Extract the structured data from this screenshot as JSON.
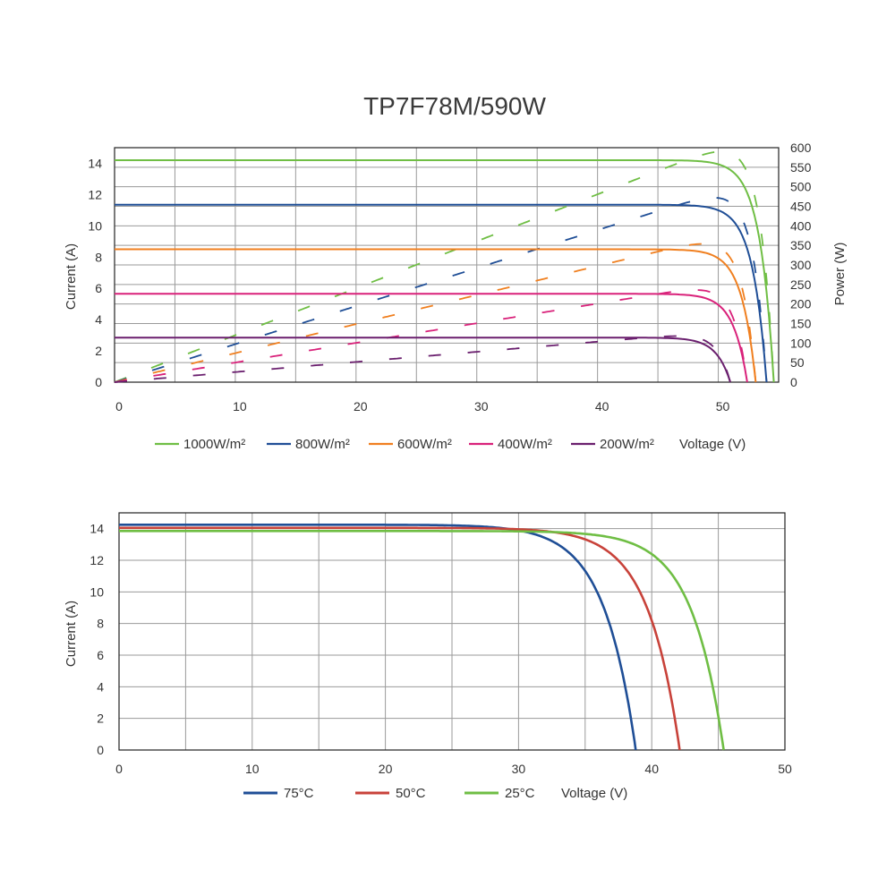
{
  "chart_data": [
    {
      "type": "line",
      "title": "TP7F78M/590W",
      "xlabel": "Voltage (V)",
      "ylabel": "Current (A)",
      "y2label": "Power (W)",
      "xlim": [
        0,
        55
      ],
      "ylim": [
        0,
        15
      ],
      "y2lim": [
        0,
        600
      ],
      "x_ticks": [
        0,
        10,
        20,
        30,
        40,
        50
      ],
      "y_ticks": [
        0,
        2,
        4,
        6,
        8,
        10,
        12,
        14
      ],
      "y2_ticks": [
        0,
        50,
        100,
        150,
        200,
        250,
        300,
        350,
        400,
        450,
        500,
        550,
        600
      ],
      "series": [
        {
          "name": "1000W/m²",
          "color": "#6fbe44",
          "isc": 14.2,
          "voc": 54.6,
          "pmax": 590
        },
        {
          "name": "800W/m²",
          "color": "#1f4e96",
          "isc": 11.35,
          "voc": 54.0,
          "pmax": 472
        },
        {
          "name": "600W/m²",
          "color": "#f07f1f",
          "isc": 8.5,
          "voc": 53.1,
          "pmax": 354
        },
        {
          "name": "400W/m²",
          "color": "#d9217a",
          "isc": 5.65,
          "voc": 52.4,
          "pmax": 236
        },
        {
          "name": "200W/m²",
          "color": "#6a1f6e",
          "isc": 2.85,
          "voc": 51.0,
          "pmax": 118
        }
      ]
    },
    {
      "type": "line",
      "xlabel": "Voltage (V)",
      "ylabel": "Current (A)",
      "xlim": [
        0,
        50
      ],
      "ylim": [
        0,
        15
      ],
      "x_ticks": [
        0,
        10,
        20,
        30,
        40,
        50
      ],
      "y_ticks": [
        0,
        2,
        4,
        6,
        8,
        10,
        12,
        14
      ],
      "series": [
        {
          "name": "75°C",
          "color": "#1f4e96",
          "isc": 14.25,
          "voc": 38.8
        },
        {
          "name": "50°C",
          "color": "#c8423a",
          "isc": 14.05,
          "voc": 42.1
        },
        {
          "name": "25°C",
          "color": "#6fbe44",
          "isc": 13.85,
          "voc": 45.4
        }
      ]
    }
  ]
}
